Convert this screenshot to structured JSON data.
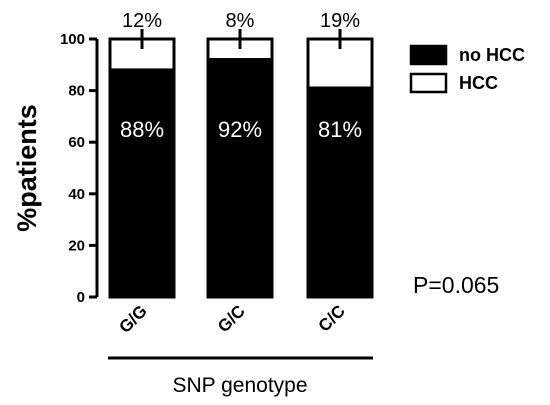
{
  "chart_data": {
    "type": "bar",
    "stacked": true,
    "title": "",
    "xlabel": "SNP genotype",
    "ylabel": "%patients",
    "ylim": [
      0,
      100
    ],
    "yticks": [
      "0",
      "20",
      "40",
      "60",
      "80",
      "100"
    ],
    "categories": [
      "G/G",
      "G/C",
      "C/C"
    ],
    "series": [
      {
        "name": "no HCC",
        "color": "#000000",
        "values": [
          88,
          92,
          81
        ],
        "labels": [
          "88%",
          "92%",
          "81%"
        ]
      },
      {
        "name": "HCC",
        "color": "#ffffff",
        "values": [
          12,
          8,
          19
        ],
        "labels": [
          "12%",
          "8%",
          "19%"
        ]
      }
    ],
    "legend_position": "top-right",
    "grid": false,
    "annotation": "P=0.065"
  }
}
